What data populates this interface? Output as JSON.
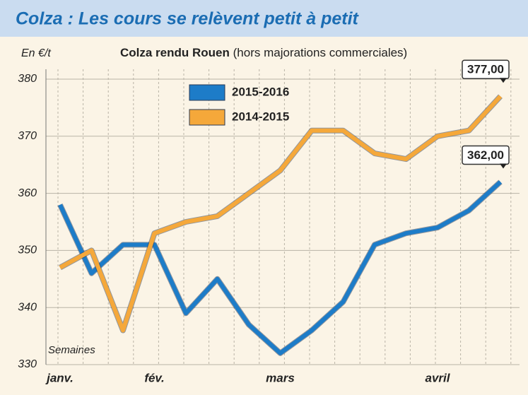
{
  "chart_data": {
    "type": "line",
    "banner": "Colza : Les cours se relèvent petit à petit",
    "title": "Colza rendu Rouen",
    "subtitle": "(hors majorations commerciales)",
    "y_label": "En €/t",
    "x_label": "Semaines",
    "categories": [
      "janv.",
      null,
      null,
      "fév.",
      null,
      null,
      null,
      "mars",
      null,
      null,
      null,
      null,
      "avril",
      null,
      null
    ],
    "series": [
      {
        "name": "2015-2016",
        "color": "#1d7cc8",
        "values": [
          358,
          346,
          351,
          351,
          339,
          345,
          337,
          332,
          336,
          341,
          351,
          353,
          354,
          357,
          362
        ],
        "value_labels": [
          null,
          null,
          null,
          null,
          null,
          null,
          null,
          null,
          null,
          null,
          null,
          null,
          null,
          null,
          "362,00"
        ]
      },
      {
        "name": "2014-2015",
        "color": "#f5a83a",
        "values": [
          347,
          350,
          336,
          353,
          355,
          356,
          360,
          364,
          371,
          371,
          367,
          366,
          370,
          371,
          377
        ],
        "value_labels": [
          null,
          null,
          null,
          null,
          null,
          null,
          null,
          null,
          null,
          null,
          null,
          null,
          null,
          null,
          "377,00"
        ]
      }
    ],
    "ylim": [
      330,
      380
    ],
    "yticks": [
      330,
      340,
      350,
      360,
      370,
      380
    ],
    "grid": true
  }
}
